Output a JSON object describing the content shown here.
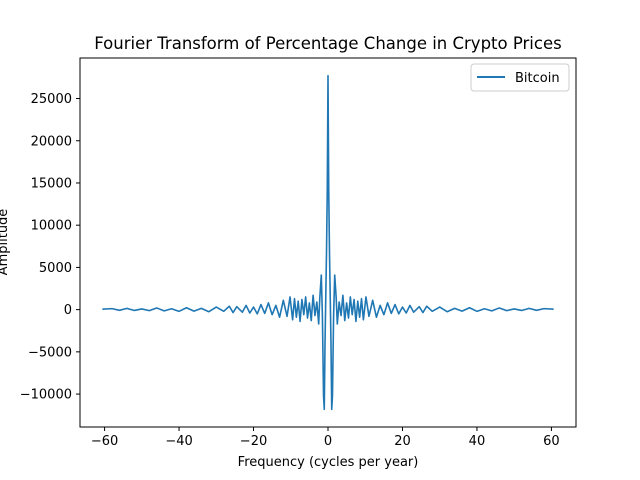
{
  "chart_data": {
    "type": "line",
    "title": "Fourier Transform of Percentage Change in Crypto Prices",
    "xlabel": "Frequency (cycles per year)",
    "ylabel": "Amplitude",
    "xlim": [
      -66.6,
      66.6
    ],
    "ylim": [
      -13900,
      29800
    ],
    "xticks": [
      -60,
      -40,
      -20,
      0,
      20,
      40,
      60
    ],
    "yticks": [
      -10000,
      -5000,
      0,
      5000,
      10000,
      15000,
      20000,
      25000
    ],
    "grid": false,
    "legend_position": "top-right",
    "series": [
      {
        "name": "Bitcoin",
        "color": "#1f77b4",
        "x": [
          -60.6,
          -58,
          -56,
          -54,
          -52,
          -50,
          -48,
          -46,
          -44,
          -42,
          -40,
          -38,
          -36,
          -34,
          -32,
          -30,
          -28,
          -26.5,
          -25.5,
          -24.5,
          -23,
          -22,
          -21,
          -20,
          -19,
          -18,
          -17,
          -16,
          -15,
          -14,
          -13,
          -12,
          -11,
          -10.2,
          -9.5,
          -9,
          -8.5,
          -8,
          -7.5,
          -7,
          -6.5,
          -6,
          -5.5,
          -5,
          -4.5,
          -4,
          -3.5,
          -3,
          -2.5,
          -2.2,
          -1.8,
          -1.5,
          -1.2,
          -1,
          -0.8,
          -0.6,
          -0.4,
          -0.2,
          0,
          0.2,
          0.4,
          0.6,
          0.8,
          1,
          1.2,
          1.5,
          1.8,
          2.2,
          2.5,
          3,
          3.5,
          4,
          4.5,
          5,
          5.5,
          6,
          6.5,
          7,
          7.5,
          8,
          8.5,
          9,
          9.5,
          10.2,
          11,
          12,
          13,
          14,
          15,
          16,
          17,
          18,
          19,
          20,
          21,
          22,
          23,
          24.5,
          25.5,
          26.5,
          28,
          30,
          32,
          34,
          36,
          38,
          40,
          42,
          44,
          46,
          48,
          50,
          52,
          54,
          56,
          58,
          60.6
        ],
        "y": [
          50,
          120,
          -80,
          150,
          -100,
          80,
          -120,
          200,
          -150,
          100,
          -200,
          220,
          -180,
          150,
          -250,
          300,
          -200,
          400,
          -350,
          350,
          -300,
          500,
          -400,
          300,
          -500,
          600,
          -450,
          800,
          -600,
          500,
          -900,
          1100,
          -800,
          1500,
          -1200,
          1300,
          -900,
          1000,
          -1400,
          1200,
          -600,
          1500,
          -1000,
          800,
          -1300,
          1700,
          -700,
          900,
          -1700,
          1400,
          4100,
          -800,
          -10200,
          -11800,
          -4000,
          1500,
          6800,
          14000,
          27700,
          14000,
          6800,
          1500,
          -4000,
          -11800,
          -10200,
          -800,
          4100,
          1400,
          -1700,
          900,
          -700,
          1700,
          -1300,
          800,
          -1000,
          1500,
          -600,
          1200,
          -1400,
          1000,
          -900,
          1300,
          -1200,
          1500,
          -800,
          1100,
          -900,
          500,
          -600,
          800,
          -450,
          600,
          -500,
          300,
          -400,
          500,
          -300,
          350,
          -350,
          400,
          -200,
          300,
          -250,
          150,
          -180,
          220,
          -200,
          100,
          -150,
          200,
          -120,
          80,
          -100,
          150,
          -80,
          120,
          50
        ]
      }
    ]
  }
}
